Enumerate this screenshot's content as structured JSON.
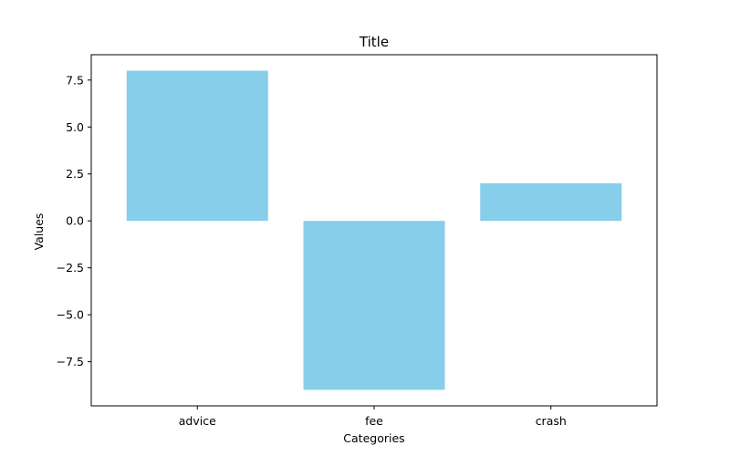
{
  "chart_data": {
    "type": "bar",
    "title": "Title",
    "xlabel": "Categories",
    "ylabel": "Values",
    "categories": [
      "advice",
      "fee",
      "crash"
    ],
    "values": [
      8,
      -9,
      2
    ],
    "ylim": [
      -9.85,
      8.85
    ],
    "yticks": [
      -7.5,
      -5.0,
      -2.5,
      0.0,
      2.5,
      5.0,
      7.5
    ],
    "ytick_labels": [
      "−7.5",
      "−5.0",
      "−2.5",
      "0.0",
      "2.5",
      "5.0",
      "7.5"
    ],
    "bar_color": "#87ceeb",
    "grid": false,
    "legend": "none"
  }
}
